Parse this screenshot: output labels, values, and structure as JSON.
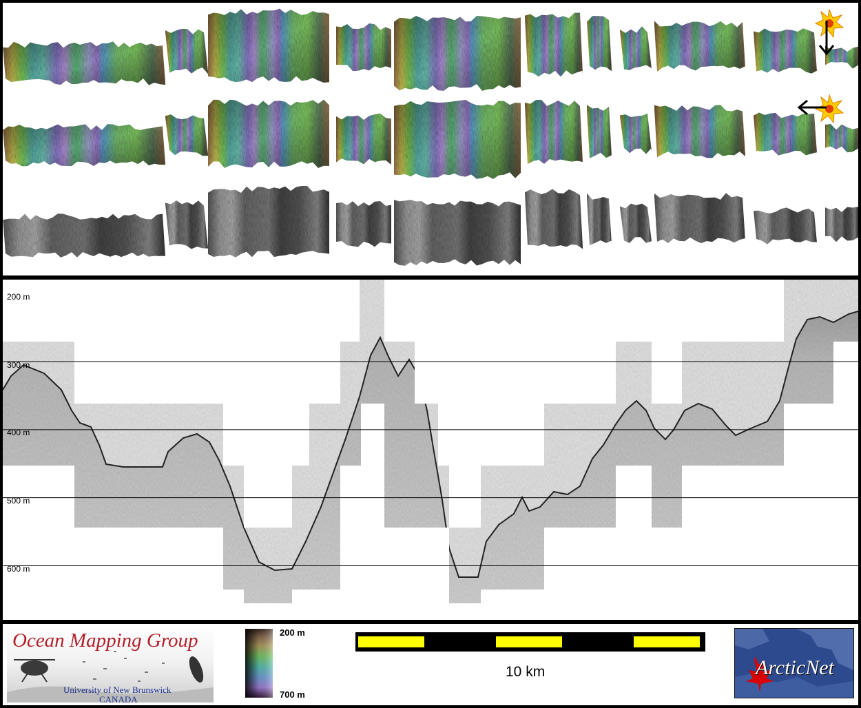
{
  "profile": {
    "depth_ticks": [
      {
        "label": "200 m",
        "value": 200
      },
      {
        "label": "300 m",
        "value": 300
      },
      {
        "label": "400 m",
        "value": 400
      },
      {
        "label": "500 m",
        "value": 500
      },
      {
        "label": "600 m",
        "value": 600
      }
    ]
  },
  "footer": {
    "ocean_logo": {
      "title": "Ocean Mapping Group",
      "line1": "University of New Brunswick",
      "line2": "CANADA"
    },
    "depth_legend": {
      "top_label": "200 m",
      "bottom_label": "700 m"
    },
    "scale_bar": {
      "label": "10 km",
      "colors": [
        "#ffff00",
        "#000000"
      ]
    },
    "arctic_logo": {
      "text": "ArcticNet"
    }
  },
  "maps": {
    "colormap": [
      "#3a1a3a",
      "#6a4a8a",
      "#9a7acb",
      "#c8a0e0",
      "#6ab0d8",
      "#50c0a0",
      "#78d060",
      "#c8d050",
      "#d0b060",
      "#a06a50"
    ],
    "sun_icon_color": "#ffcc00"
  }
}
